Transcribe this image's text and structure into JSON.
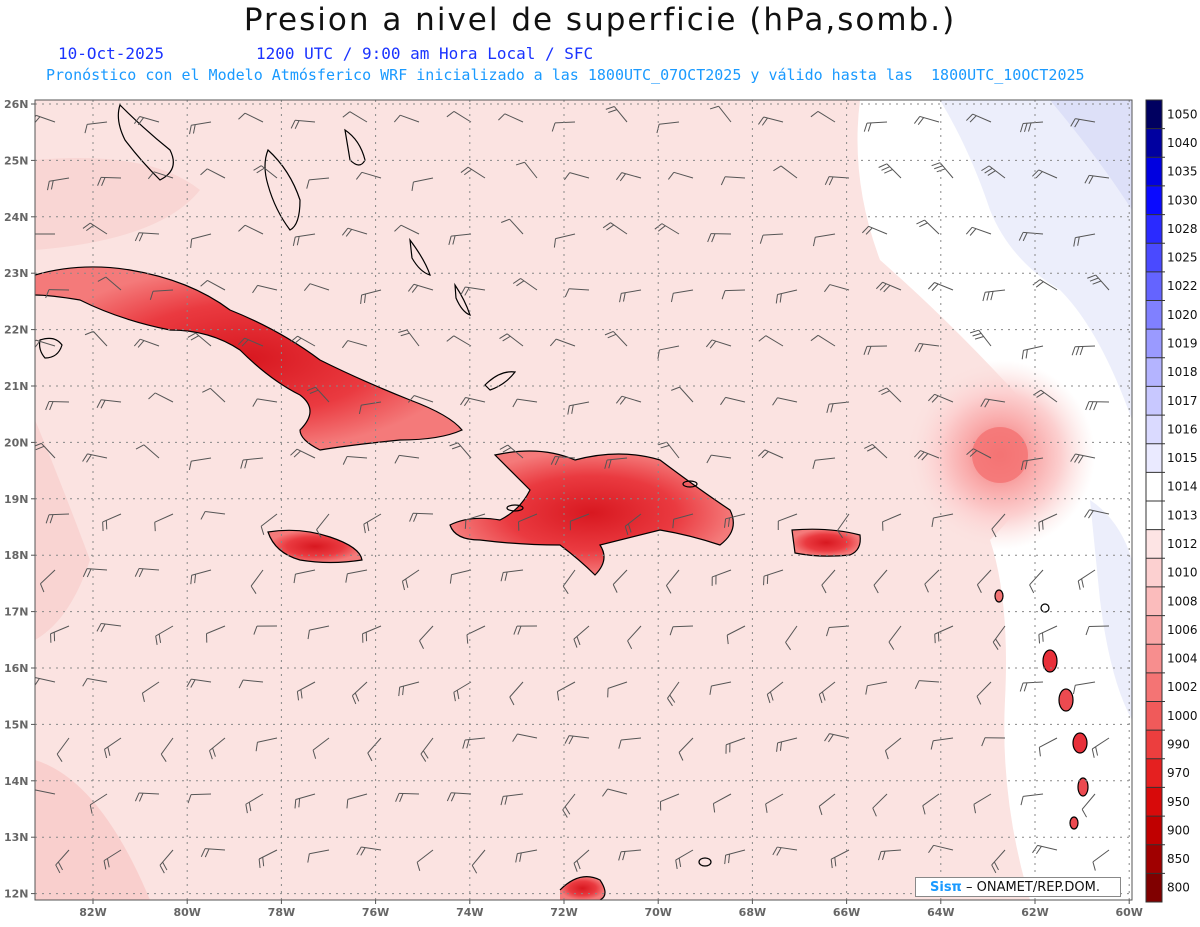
{
  "header": {
    "title": "Presion a nivel de superficie (hPa,somb.)",
    "date": "10-Oct-2025",
    "time_info": "1200 UTC / 9:00 am Hora Local / SFC",
    "forecast_info": "Pronóstico con el Modelo Atmósferico WRF inicializado a las 1800UTC_07OCT2025 y válido hasta las  1800UTC_10OCT2025"
  },
  "map": {
    "lat_labels": [
      "26N",
      "25N",
      "24N",
      "23N",
      "22N",
      "21N",
      "20N",
      "19N",
      "18N",
      "17N",
      "16N",
      "15N",
      "14N",
      "13N",
      "12N"
    ],
    "lon_labels": [
      "82W",
      "80W",
      "78W",
      "76W",
      "74W",
      "72W",
      "70W",
      "68W",
      "66W",
      "64W",
      "62W",
      "60W"
    ],
    "background_color": "#fbe3e1",
    "high_color": "#e6e9fb",
    "low_color": "#e8303a"
  },
  "colorbar": {
    "levels": [
      "1050",
      "1040",
      "1035",
      "1030",
      "1028",
      "1025",
      "1022",
      "1020",
      "1019",
      "1018",
      "1017",
      "1016",
      "1015",
      "1014",
      "1013",
      "1012",
      "1010",
      "1008",
      "1006",
      "1004",
      "1002",
      "1000",
      "990",
      "970",
      "950",
      "900",
      "850",
      "800"
    ],
    "colors": [
      "#000060",
      "#0000a0",
      "#0000e0",
      "#0a0aff",
      "#2a2aff",
      "#4a4aff",
      "#6464ff",
      "#8080ff",
      "#9a9aff",
      "#b4b4ff",
      "#c8c8ff",
      "#dadaff",
      "#eaeaff",
      "#ffffff",
      "#ffffff",
      "#fde4e4",
      "#fcd0d0",
      "#fbbcbc",
      "#f9a6a6",
      "#f78e8e",
      "#f47474",
      "#f05a5a",
      "#ec3e3e",
      "#e52020",
      "#d80a0a",
      "#c00000",
      "#a00000",
      "#800000"
    ]
  },
  "credit": {
    "brand": "Sisπ",
    "text": "– ONAMET/REP.DOM."
  }
}
